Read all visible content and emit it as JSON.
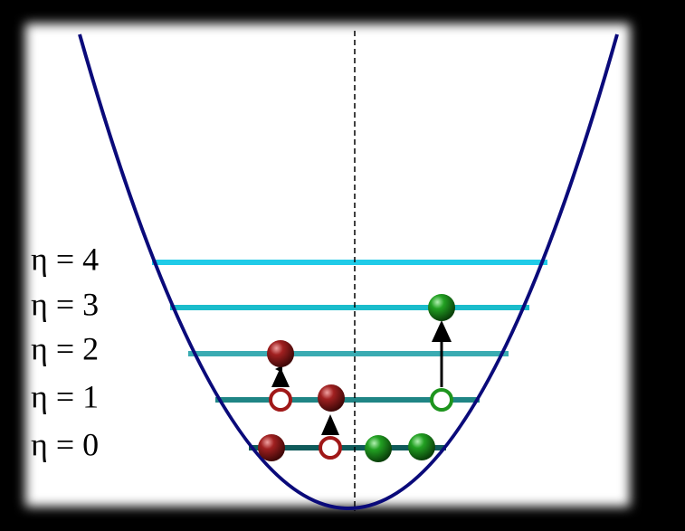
{
  "levels": [
    {
      "label": "η = 0"
    },
    {
      "label": "η = 1"
    },
    {
      "label": "η = 2"
    },
    {
      "label": "η = 3"
    },
    {
      "label": "η = 4"
    }
  ]
}
